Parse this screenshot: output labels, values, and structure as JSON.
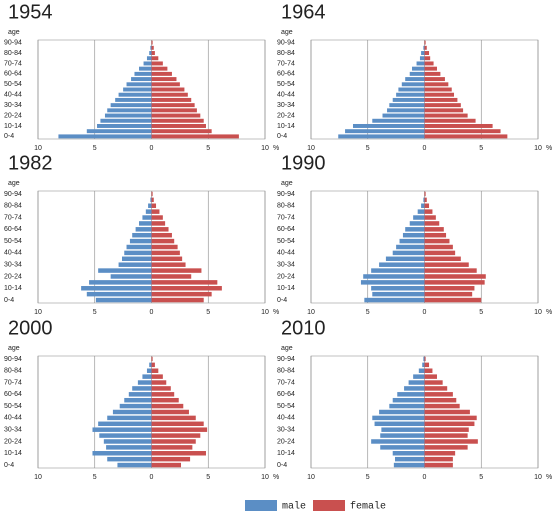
{
  "chart_data": [
    {
      "type": "pyramid",
      "title": "1954",
      "y_label": "age",
      "x_label": "%",
      "categories": [
        "0-4",
        null,
        "10-14",
        null,
        "20-24",
        null,
        "30-34",
        null,
        "40-44",
        null,
        "50-54",
        null,
        "60-64",
        null,
        "70-74",
        null,
        "80-84",
        null,
        "90-94"
      ],
      "series": [
        {
          "name": "male",
          "color": "#5b8ec5",
          "values": [
            8.2,
            5.7,
            4.8,
            4.5,
            4.1,
            3.9,
            3.6,
            3.2,
            2.9,
            2.5,
            2.2,
            1.8,
            1.5,
            1.1,
            0.7,
            0.4,
            0.2,
            0.1,
            0
          ]
        },
        {
          "name": "female",
          "color": "#c9504f",
          "values": [
            7.7,
            5.3,
            4.8,
            4.6,
            4.3,
            4.0,
            3.8,
            3.5,
            3.2,
            2.9,
            2.5,
            2.2,
            1.8,
            1.4,
            1.0,
            0.6,
            0.3,
            0.2,
            0.1
          ]
        }
      ],
      "xlim": [
        -10,
        10
      ],
      "xticks": [
        {
          "value": -10,
          "label": "10"
        },
        {
          "value": -5,
          "label": "5"
        },
        0,
        5,
        10
      ],
      "grid": true
    },
    {
      "type": "pyramid",
      "title": "1964",
      "y_label": "age",
      "x_label": "%",
      "categories": [
        "0-4",
        null,
        "10-14",
        null,
        "20-24",
        null,
        "30-34",
        null,
        "40-44",
        null,
        "50-54",
        null,
        "60-64",
        null,
        "70-74",
        null,
        "80-84",
        null,
        "90-94"
      ],
      "series": [
        {
          "name": "male",
          "color": "#5b8ec5",
          "values": [
            7.6,
            7.0,
            6.3,
            4.6,
            3.7,
            3.3,
            3.1,
            2.8,
            2.5,
            2.3,
            2.0,
            1.7,
            1.3,
            1.1,
            0.7,
            0.4,
            0.3,
            0.1,
            0
          ]
        },
        {
          "name": "female",
          "color": "#c9504f",
          "values": [
            7.3,
            6.7,
            6.0,
            4.5,
            3.8,
            3.4,
            3.2,
            2.9,
            2.6,
            2.4,
            2.1,
            1.8,
            1.4,
            1.1,
            0.8,
            0.5,
            0.4,
            0.2,
            0.1
          ]
        }
      ],
      "xlim": [
        -10,
        10
      ],
      "xticks": [
        {
          "value": -10,
          "label": "10"
        },
        {
          "value": -5,
          "label": "5"
        },
        0,
        5,
        10
      ],
      "grid": true
    },
    {
      "type": "pyramid",
      "title": "1982",
      "y_label": "age",
      "x_label": "%",
      "categories": [
        "0-4",
        null,
        "10-14",
        null,
        "20-24",
        null,
        "30-34",
        null,
        "40-44",
        null,
        "50-54",
        null,
        "60-64",
        null,
        "70-74",
        null,
        "80-84",
        null,
        "90-94"
      ],
      "series": [
        {
          "name": "male",
          "color": "#5b8ec5",
          "values": [
            4.9,
            5.7,
            6.2,
            5.5,
            3.6,
            4.7,
            2.9,
            2.6,
            2.4,
            2.2,
            1.9,
            1.7,
            1.4,
            1.1,
            0.8,
            0.5,
            0.3,
            0.1,
            0
          ]
        },
        {
          "name": "female",
          "color": "#c9504f",
          "values": [
            4.6,
            5.3,
            6.2,
            5.8,
            3.5,
            4.4,
            3.0,
            2.7,
            2.5,
            2.3,
            2.0,
            1.8,
            1.5,
            1.2,
            1.0,
            0.7,
            0.4,
            0.2,
            0.1
          ]
        }
      ],
      "xlim": [
        -10,
        10
      ],
      "xticks": [
        {
          "value": -10,
          "label": "10"
        },
        {
          "value": -5,
          "label": "5"
        },
        0,
        5,
        10
      ],
      "grid": true
    },
    {
      "type": "pyramid",
      "title": "1990",
      "y_label": "age",
      "x_label": "%",
      "categories": [
        "0-4",
        null,
        "10-14",
        null,
        "20-24",
        null,
        "30-34",
        null,
        "40-44",
        null,
        "50-54",
        null,
        "60-64",
        null,
        "70-74",
        null,
        "80-84",
        null,
        "90-94"
      ],
      "series": [
        {
          "name": "male",
          "color": "#5b8ec5",
          "values": [
            5.3,
            4.6,
            4.7,
            5.6,
            5.4,
            4.7,
            4.0,
            3.4,
            2.8,
            2.5,
            2.2,
            1.9,
            1.7,
            1.3,
            1.0,
            0.6,
            0.3,
            0.1,
            0
          ]
        },
        {
          "name": "female",
          "color": "#c9504f",
          "values": [
            5.0,
            4.2,
            4.4,
            5.3,
            5.4,
            4.6,
            3.9,
            3.2,
            2.7,
            2.5,
            2.2,
            1.9,
            1.7,
            1.3,
            1.0,
            0.7,
            0.4,
            0.2,
            0.1
          ]
        }
      ],
      "xlim": [
        -10,
        10
      ],
      "xticks": [
        {
          "value": -10,
          "label": "10"
        },
        {
          "value": -5,
          "label": "5"
        },
        0,
        5,
        10
      ],
      "grid": true
    },
    {
      "type": "pyramid",
      "title": "2000",
      "y_label": "age",
      "x_label": "%",
      "categories": [
        "0-4",
        null,
        "10-14",
        null,
        "20-24",
        null,
        "30-34",
        null,
        "40-44",
        null,
        "50-54",
        null,
        "60-64",
        null,
        "70-74",
        null,
        "80-84",
        null,
        "90-94"
      ],
      "series": [
        {
          "name": "male",
          "color": "#5b8ec5",
          "values": [
            3.0,
            3.9,
            5.2,
            4.0,
            4.2,
            4.6,
            5.2,
            4.7,
            3.9,
            3.4,
            2.8,
            2.4,
            2.0,
            1.7,
            1.2,
            0.8,
            0.4,
            0.2,
            0
          ]
        },
        {
          "name": "female",
          "color": "#c9504f",
          "values": [
            2.6,
            3.4,
            4.8,
            3.6,
            3.9,
            4.3,
            4.9,
            4.6,
            3.9,
            3.3,
            2.8,
            2.4,
            2.0,
            1.7,
            1.3,
            1.0,
            0.6,
            0.3,
            0.1
          ]
        }
      ],
      "xlim": [
        -10,
        10
      ],
      "xticks": [
        {
          "value": -10,
          "label": "10"
        },
        {
          "value": -5,
          "label": "5"
        },
        0,
        5,
        10
      ],
      "grid": true
    },
    {
      "type": "pyramid",
      "title": "2010",
      "y_label": "age",
      "x_label": "%",
      "categories": [
        "0-4",
        null,
        "10-14",
        null,
        "20-24",
        null,
        "30-34",
        null,
        "40-44",
        null,
        "50-54",
        null,
        "60-64",
        null,
        "70-74",
        null,
        "80-84",
        null,
        "90-94"
      ],
      "series": [
        {
          "name": "male",
          "color": "#5b8ec5",
          "values": [
            2.7,
            2.6,
            2.8,
            3.9,
            4.7,
            3.9,
            3.8,
            4.4,
            4.6,
            4.0,
            3.1,
            2.8,
            2.4,
            1.8,
            1.4,
            1.0,
            0.5,
            0.2,
            0.1
          ]
        },
        {
          "name": "female",
          "color": "#c9504f",
          "values": [
            2.5,
            2.5,
            2.7,
            3.8,
            4.7,
            3.8,
            3.9,
            4.4,
            4.6,
            4.0,
            3.1,
            2.8,
            2.5,
            2.0,
            1.6,
            1.1,
            0.7,
            0.4,
            0.1
          ]
        }
      ],
      "xlim": [
        -10,
        10
      ],
      "xticks": [
        {
          "value": -10,
          "label": "10"
        },
        {
          "value": -5,
          "label": "5"
        },
        0,
        5,
        10
      ],
      "grid": true
    }
  ]
}
